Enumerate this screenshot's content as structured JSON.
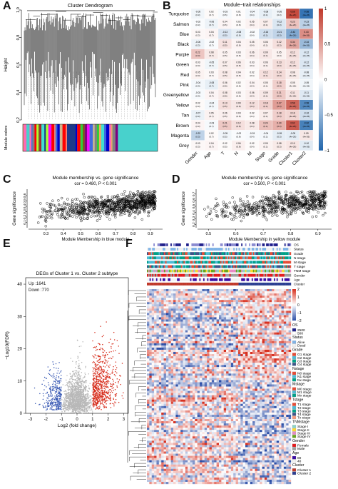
{
  "panels": {
    "A": {
      "letter": "A",
      "chart_data": {
        "type": "dendrogram",
        "title": "Cluster Dendrogram",
        "ylabel": "Height",
        "ylim": [
          0.2,
          1.0
        ],
        "yticks": [
          "0.2",
          "0.4",
          "0.6",
          "0.8",
          "1.0"
        ],
        "colorbar_label": "Module colors",
        "module_colors": [
          "#2a2a2a",
          "#8b4513",
          "#ff69b4",
          "#40e0d0",
          "#f4a460",
          "#7cfc00",
          "#ff0000",
          "#ffd700",
          "#1e3a8a",
          "#4169e1",
          "#32cd32",
          "#800080",
          "#ffc0cb",
          "#a52a2a",
          "#808080",
          "#000000",
          "#adff2f",
          "#d2b48c",
          "#fa8072",
          "#ff00ff",
          "#0000cd",
          "#48d1cc"
        ]
      }
    },
    "B": {
      "letter": "B",
      "chart_data": {
        "type": "heatmap",
        "title": "Module−trait relationships",
        "rows": [
          "Turquoise",
          "Salmon",
          "Blue",
          "Black",
          "Purple",
          "Green",
          "Red",
          "Pink",
          "Greenyellow",
          "Yellow",
          "Tan",
          "Brown",
          "Magenta",
          "Grey"
        ],
        "cols": [
          "Gender",
          "Age",
          "T",
          "N",
          "M",
          "Stage",
          "Grade",
          "Cluster1",
          "Cluster2"
        ],
        "values": [
          [
            -0.05,
            0.02,
            -0.03,
            0.01,
            -0.04,
            -0.08,
            -0.05,
            0.68,
            -0.68
          ],
          [
            -0.02,
            -0.06,
            0.04,
            0.02,
            0.05,
            0.07,
            -0.12,
            0.23,
            -0.23
          ],
          [
            0.03,
            0.04,
            -0.13,
            -0.08,
            -0.02,
            -0.16,
            -0.21,
            -0.43,
            0.43
          ],
          [
            -0.06,
            -0.02,
            0.11,
            0.04,
            0.05,
            0.06,
            0.12,
            0.34,
            -0.34
          ],
          [
            0.22,
            0.08,
            0.05,
            0.03,
            0.06,
            0.09,
            0.05,
            0.12,
            -0.12
          ],
          [
            0.03,
            -0.05,
            0.07,
            0.06,
            0.03,
            0.06,
            0.13,
            0.12,
            -0.12
          ],
          [
            0.05,
            0.03,
            0.08,
            0.04,
            0.02,
            0.12,
            0.14,
            0.08,
            -0.08
          ],
          [
            -0.04,
            -0.08,
            0.06,
            0.02,
            0.04,
            0.05,
            0.18,
            0.05,
            -0.05
          ],
          [
            -0.03,
            0.04,
            0.08,
            0.03,
            0.06,
            0.09,
            0.21,
            0.11,
            -0.11
          ],
          [
            0.02,
            -0.04,
            0.13,
            0.09,
            0.12,
            0.18,
            0.37,
            0.58,
            -0.58
          ],
          [
            -0.07,
            0.05,
            0.06,
            0.03,
            0.02,
            0.07,
            0.18,
            0.16,
            -0.16
          ],
          [
            0.04,
            -0.03,
            0.21,
            0.12,
            0.08,
            0.24,
            0.3,
            0.62,
            -0.62
          ],
          [
            -0.22,
            0.02,
            -0.05,
            -0.02,
            -0.03,
            -0.04,
            -0.09,
            -0.09,
            0.09
          ],
          [
            0.03,
            0.04,
            0.02,
            0.06,
            0.02,
            0.05,
            0.08,
            0.1,
            -0.1
          ]
        ],
        "pvalue_labels": [
          "(0.3)",
          "(0.7)",
          "(0.5)",
          "(0.8)",
          "(0.4)",
          "(0.1)",
          "(0.3)",
          "(4e-26)",
          "(4e-26)"
        ],
        "scale": {
          "ticks": [
            "1",
            "0.5",
            "0",
            "−0.5",
            "−1"
          ],
          "min": -1,
          "max": 1
        }
      }
    },
    "C": {
      "letter": "C",
      "chart_data": {
        "type": "scatter",
        "title": "Module membership vs. gene significance",
        "subtitle": "cor = 0.480,  P < 0.001",
        "xlabel": "Module Membership in blue module",
        "ylabel": "Gene significance",
        "xlim": [
          0.2,
          0.97
        ],
        "ylim": [
          0.0,
          0.72
        ],
        "xticks": [
          0.3,
          0.4,
          0.5,
          0.6,
          0.7,
          0.8,
          0.9
        ],
        "yticks": [
          0.1,
          0.2,
          0.3,
          0.4,
          0.5,
          0.6
        ],
        "n_points": 900,
        "cor": 0.48,
        "x_range": [
          0.25,
          0.93
        ],
        "y_range": [
          0.03,
          0.68
        ]
      }
    },
    "D": {
      "letter": "D",
      "chart_data": {
        "type": "scatter",
        "title": "Module membership vs. gene significance",
        "subtitle": "cor = 0.500,  P < 0.001",
        "xlabel": "Module Membership in yellow module",
        "ylabel": "Gene significance",
        "xlim": [
          0.46,
          0.95
        ],
        "ylim": [
          0.15,
          0.78
        ],
        "xticks": [
          0.5,
          0.6,
          0.7,
          0.8,
          0.9
        ],
        "yticks": [
          0.2,
          0.3,
          0.4,
          0.5,
          0.6,
          0.7
        ],
        "n_points": 650,
        "cor": 0.5,
        "x_range": [
          0.48,
          0.93
        ],
        "y_range": [
          0.2,
          0.74
        ]
      }
    },
    "E": {
      "letter": "E",
      "chart_data": {
        "type": "scatter",
        "title": "DEGs of Cluster 1 vs. Cluster 2 subtype",
        "xlabel": "Log2 (fold change)",
        "ylabel": "−Log10(FDR)",
        "xlim": [
          -3.3,
          3.3
        ],
        "ylim": [
          0,
          42
        ],
        "xticks": [
          -3,
          -2,
          -1,
          0,
          1,
          2,
          3
        ],
        "yticks": [
          0,
          10,
          20,
          30,
          40
        ],
        "legend": [
          {
            "label": "Up :1641",
            "color": "#d7301f"
          },
          {
            "label": "Down :770",
            "color": "#3b5bb5"
          }
        ],
        "fc_threshold": 1,
        "up_count": 1641,
        "down_count": 770,
        "colors": {
          "up": "#d7301f",
          "down": "#3b5bb5",
          "ns": "#b8b8b8"
        }
      }
    },
    "F": {
      "letter": "F",
      "chart_data": {
        "type": "heatmap",
        "annotation_tracks": [
          "OS",
          "Status",
          "Grade",
          "N stage",
          "M stage",
          "T stage",
          "TNM stage",
          "Gender",
          "Age",
          "Cluster"
        ],
        "scale": {
          "ticks": [
            "2",
            "1",
            "0",
            "−1",
            "−2"
          ]
        },
        "legend": [
          {
            "title": "OS",
            "items": [
              {
                "label": "2500",
                "color": "#1f1f8a"
              },
              {
                "label": "500",
                "color": "#ffffff"
              }
            ]
          },
          {
            "title": "Status",
            "items": [
              {
                "label": "Alive",
                "color": "#7fb3e6"
              },
              {
                "label": "Dead",
                "color": "#f0f0f0"
              }
            ]
          },
          {
            "title": "Grade",
            "items": [
              {
                "label": "G1 stage",
                "color": "#e64b35"
              },
              {
                "label": "G2 stage",
                "color": "#4dbbd5"
              },
              {
                "label": "G3 stage",
                "color": "#00a087"
              },
              {
                "label": "G4 stage",
                "color": "#3c5488"
              }
            ]
          },
          {
            "title": "Nstage",
            "items": [
              {
                "label": "N0 stage",
                "color": "#e64b35"
              },
              {
                "label": "N1 stage",
                "color": "#4dbbd5"
              },
              {
                "label": "Nx stage",
                "color": "#00a087"
              }
            ]
          },
          {
            "title": "Mstage",
            "items": [
              {
                "label": "M0 stage",
                "color": "#e64b35"
              },
              {
                "label": "M1 stage",
                "color": "#4dbbd5"
              },
              {
                "label": "Mx stage",
                "color": "#00a087"
              }
            ]
          },
          {
            "title": "Tstage",
            "items": [
              {
                "label": "T1 stage",
                "color": "#e64b35"
              },
              {
                "label": "T2 stage",
                "color": "#4dbbd5"
              },
              {
                "label": "T3 stage",
                "color": "#00a087"
              },
              {
                "label": "T4 stage",
                "color": "#3c5488"
              },
              {
                "label": "Tx stage",
                "color": "#f39b7f"
              }
            ]
          },
          {
            "title": "TNMstage",
            "items": [
              {
                "label": "Stage I",
                "color": "#8dd3c7"
              },
              {
                "label": "Stage II",
                "color": "#ffd92f"
              },
              {
                "label": "Stage III",
                "color": "#e78ac3"
              },
              {
                "label": "Stage IV",
                "color": "#66a61e"
              }
            ]
          },
          {
            "title": "Gender",
            "items": [
              {
                "label": "Female",
                "color": "#e41a1c"
              },
              {
                "label": "Male",
                "color": "#9e9e9e"
              }
            ]
          },
          {
            "title": "Age",
            "items": [
              {
                "label": "80",
                "color": "#3a0ca3"
              },
              {
                "label": "40",
                "color": "#f2f2f2"
              }
            ]
          },
          {
            "title": "Cluster",
            "items": [
              {
                "label": "Cluster 1",
                "color": "#c0392b"
              },
              {
                "label": "Cluster 2",
                "color": "#2c3e91"
              }
            ]
          }
        ],
        "colors": {
          "high": "#d7301f",
          "mid": "#ffffff",
          "low": "#2c4fa8"
        }
      }
    }
  }
}
